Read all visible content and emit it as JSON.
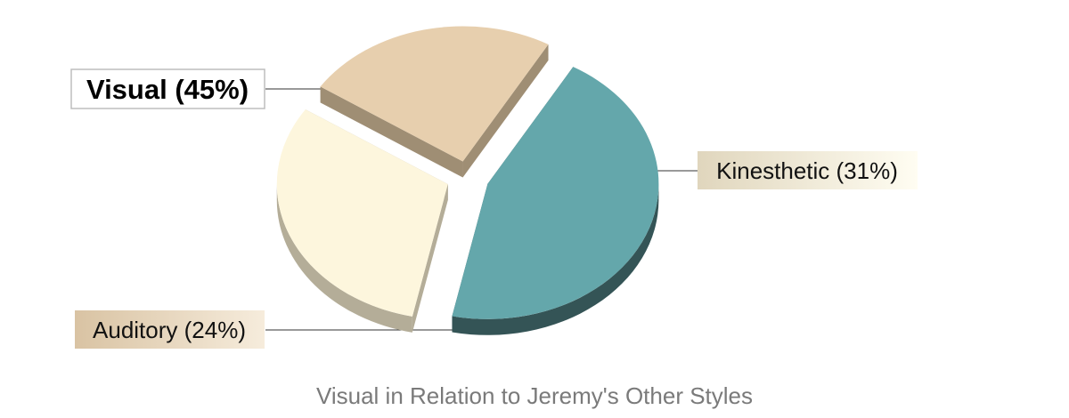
{
  "chart_data": {
    "type": "pie",
    "style": "3d-exploded",
    "caption": "Visual in Relation to Jeremy's Other Styles",
    "slices": [
      {
        "label": "Visual (45%)",
        "value": 45,
        "color": "#64a7ab",
        "side_color": "#345456",
        "emphasized": true
      },
      {
        "label": "Kinesthetic (31%)",
        "value": 31,
        "color": "#fdf6dd",
        "side_color": "#b4ad98",
        "emphasized": false
      },
      {
        "label": "Auditory (24%)",
        "value": 24,
        "color": "#e7cfae",
        "side_color": "#9f8e74",
        "emphasized": false
      }
    ],
    "legend": "none",
    "grid": false
  }
}
